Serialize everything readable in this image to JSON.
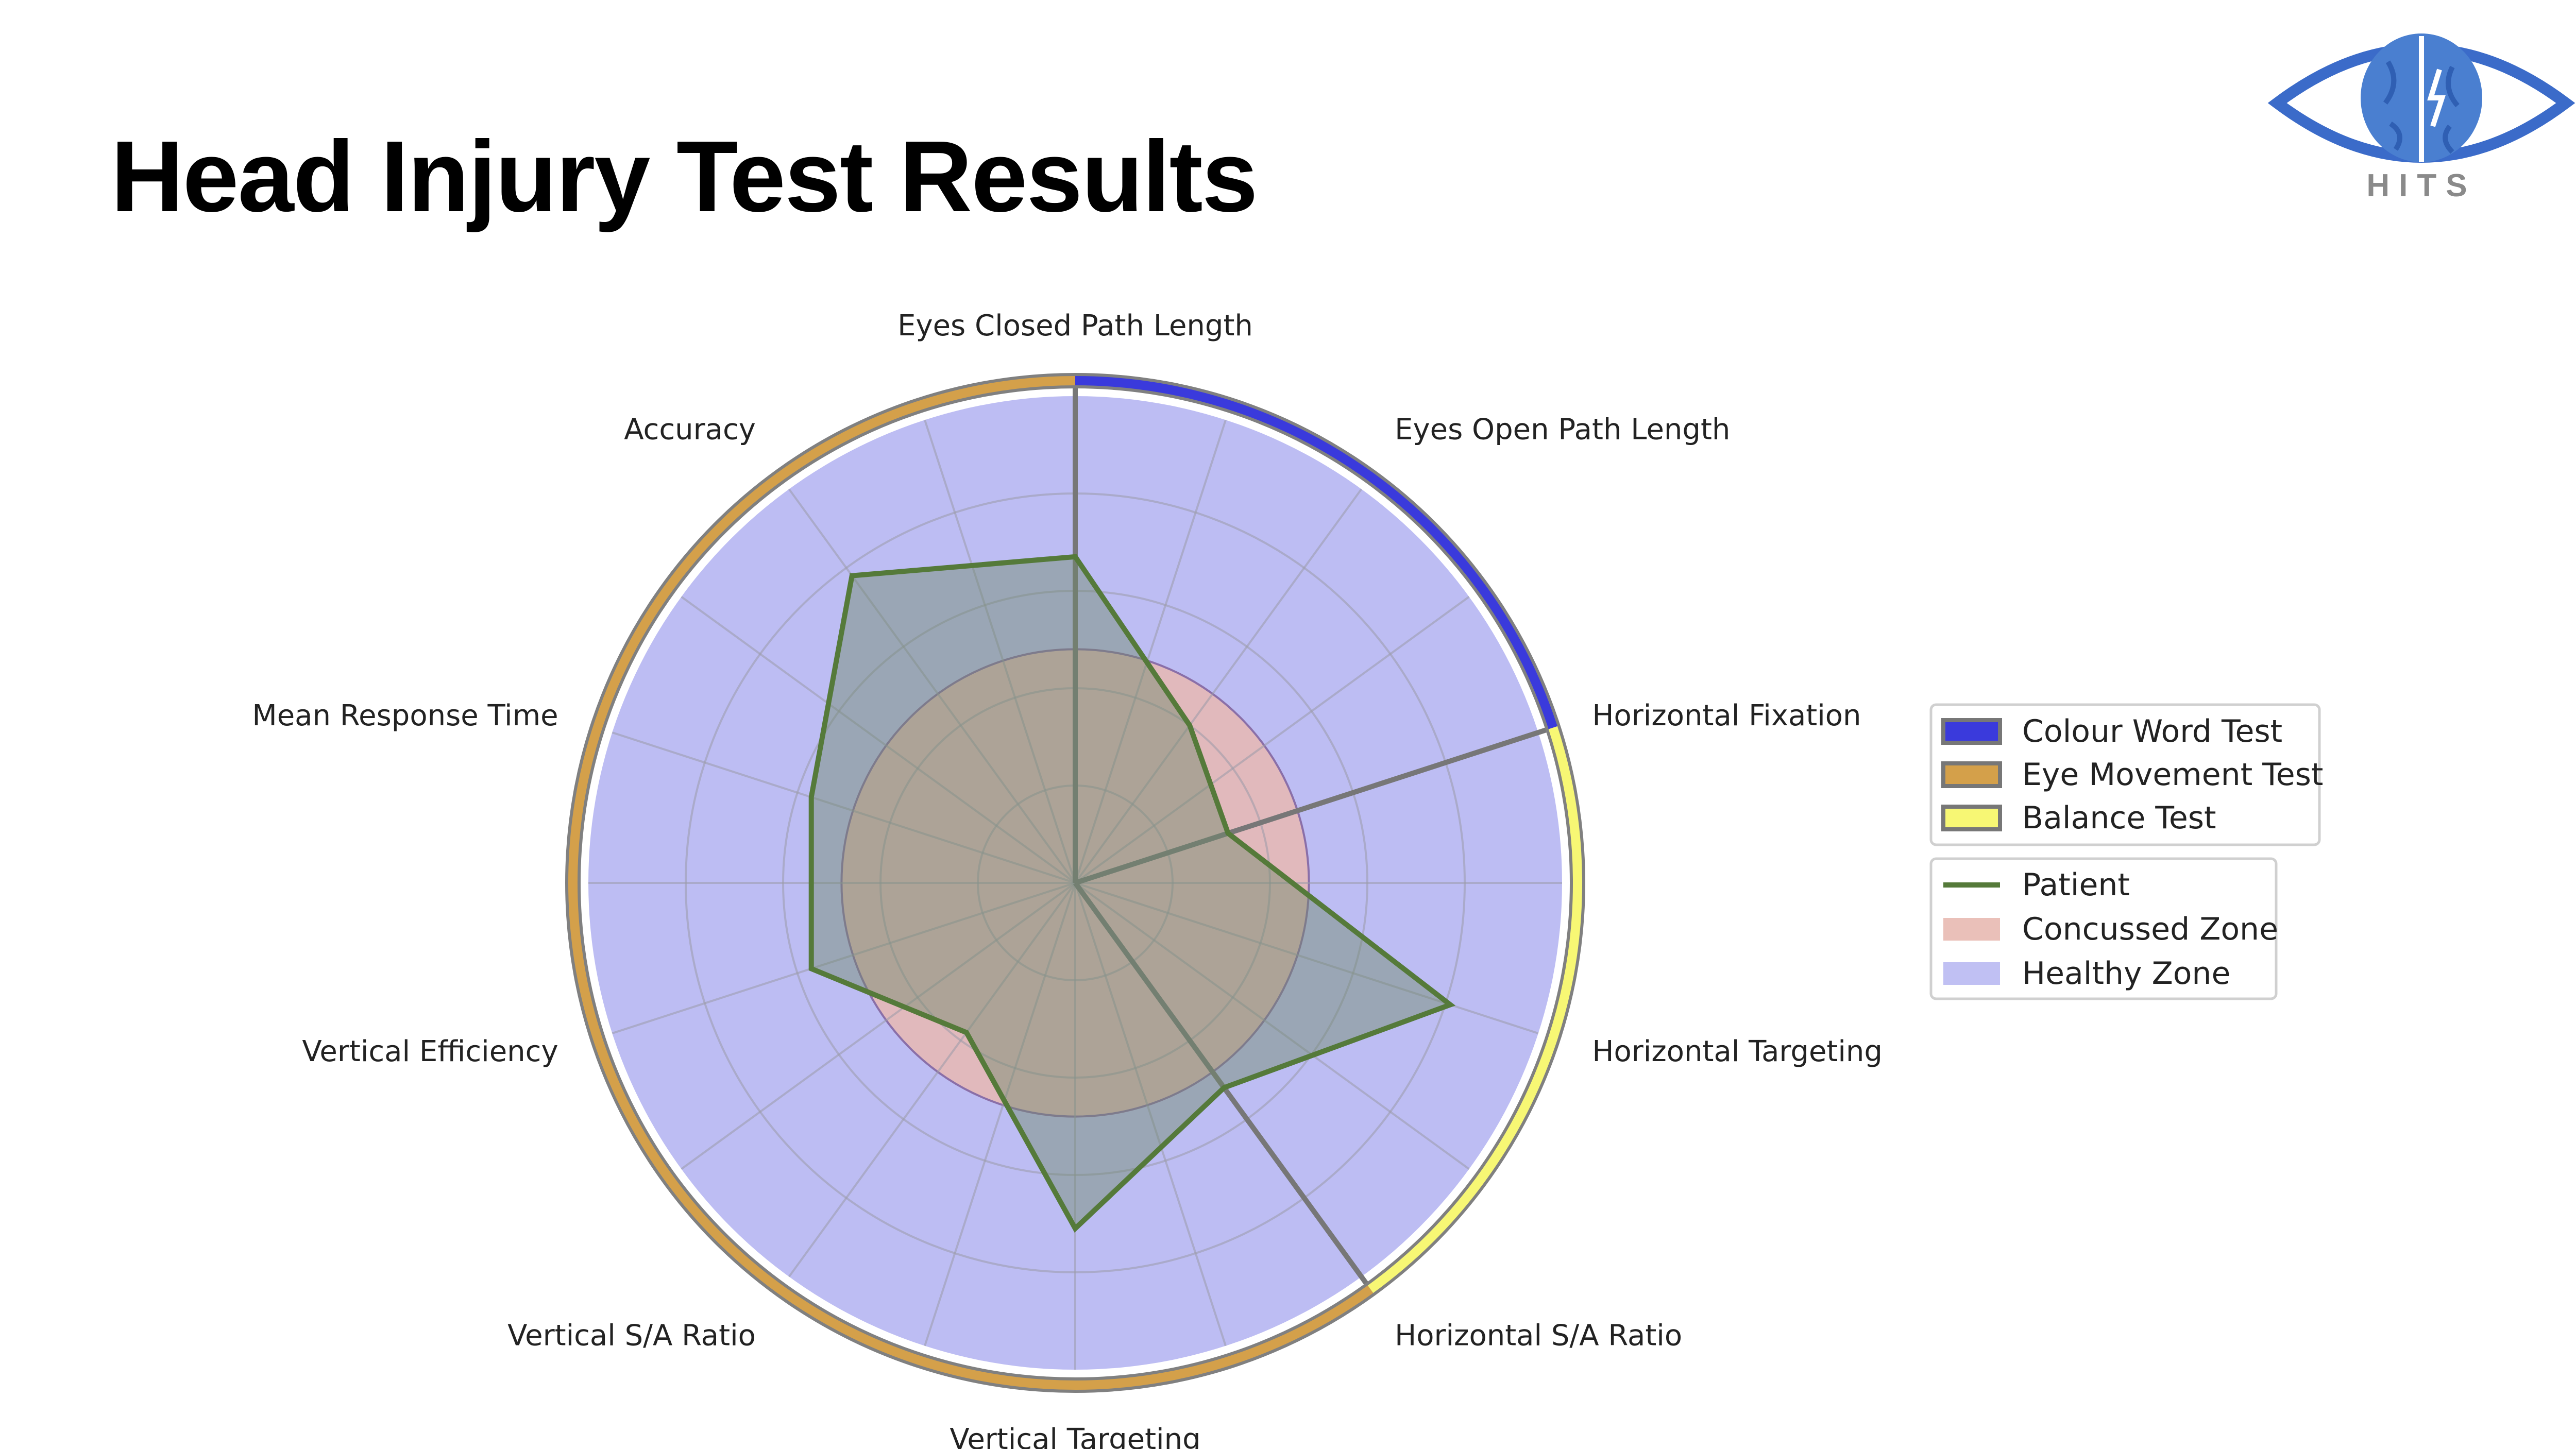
{
  "header": {
    "title": "Head Injury Test Results"
  },
  "logo": {
    "text": "HITS",
    "icon": "brain-eye-icon"
  },
  "chart_data": {
    "type": "radar",
    "axes": [
      "Eyes Closed Path Length",
      "Eyes Open Path Length",
      "Horizontal Fixation",
      "Horizontal Targeting",
      "Horizontal S/A Ratio",
      "Vertical Targeting",
      "Vertical S/A Ratio",
      "Vertical Efficiency",
      "Mean Response Time",
      "Accuracy"
    ],
    "rlim": [
      0,
      1
    ],
    "grid": true,
    "legend_position": "right",
    "test_groups": [
      {
        "name": "Colour Word Test",
        "color": "#3a3adc",
        "start_angle_deg": 270,
        "end_angle_deg": 342
      },
      {
        "name": "Eye Movement Test",
        "color": "#d4a04a",
        "start_angle_deg": 54,
        "end_angle_deg": 270
      },
      {
        "name": "Balance Test",
        "color": "#f7f774",
        "start_angle_deg": 342,
        "end_angle_deg": 54
      }
    ],
    "series": [
      {
        "name": "Patient",
        "color": "#557a3a",
        "values": [
          0.67,
          0.4,
          0.33,
          0.81,
          0.52,
          0.71,
          0.38,
          0.57,
          0.57,
          0.78
        ]
      },
      {
        "name": "Concussed Zone",
        "color": "#e8b9b1",
        "values": [
          0.48,
          0.48,
          0.48,
          0.48,
          0.48,
          0.48,
          0.48,
          0.48,
          0.48,
          0.48
        ]
      },
      {
        "name": "Healthy Zone",
        "color": "#b9b9f2",
        "values": [
          1,
          1,
          1,
          1,
          1,
          1,
          1,
          1,
          1,
          1
        ]
      }
    ]
  }
}
